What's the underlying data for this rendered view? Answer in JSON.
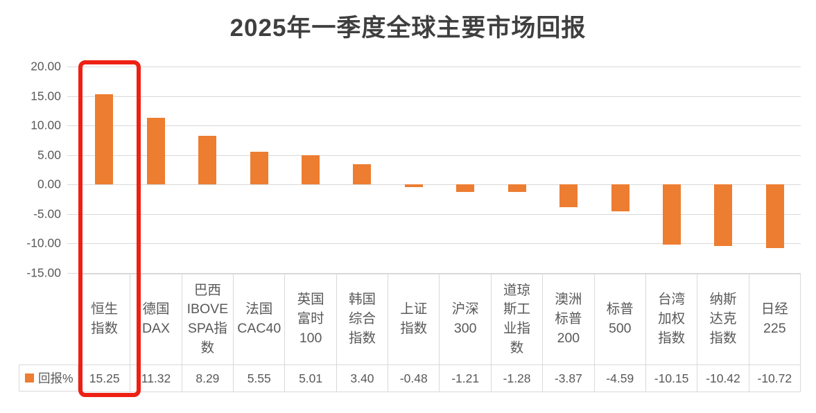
{
  "title": "2025年一季度全球主要市场回报",
  "colors": {
    "bar": "#ED7D31",
    "highlight_box": "#EE2014",
    "title_text": "#3F3F3F",
    "axis_text": "#595959",
    "gridline": "#D9D9D9",
    "table_border": "#D9D9D9",
    "background": "#FFFFFF"
  },
  "y_axis": {
    "ticks": [
      "20.00",
      "15.00",
      "10.00",
      "5.00",
      "0.00",
      "-5.00",
      "-10.00",
      "-15.00"
    ]
  },
  "legend": {
    "series_label": "回报%",
    "swatch_color": "#ED7D31"
  },
  "chart_data": {
    "type": "bar",
    "title": "2025年一季度全球主要市场回报",
    "series_name": "回报%",
    "categories": [
      "恒生指数",
      "德国DAX",
      "巴西IBOVESPA指数",
      "法国CAC40",
      "英国富时100",
      "韩国综合指数",
      "上证指数",
      "沪深300",
      "道琼斯工业指数",
      "澳洲标普200",
      "标普500",
      "台湾加权指数",
      "纳斯达克指数",
      "日经225"
    ],
    "category_display": [
      "恒生\n指数",
      "德国\nDAX",
      "巴西\nIBOVE\nSPA指\n数",
      "法国\nCAC40",
      "英国\n富时\n100",
      "韩国\n综合\n指数",
      "上证\n指数",
      "沪深\n300",
      "道琼\n斯工\n业指\n数",
      "澳洲\n标普\n200",
      "标普\n500",
      "台湾\n加权\n指数",
      "纳斯\n达克\n指数",
      "日经\n225"
    ],
    "values": [
      15.25,
      11.32,
      8.29,
      5.55,
      5.01,
      3.4,
      -0.48,
      -1.21,
      -1.28,
      -3.87,
      -4.59,
      -10.15,
      -10.42,
      -10.72
    ],
    "value_labels": [
      "15.25",
      "11.32",
      "8.29",
      "5.55",
      "5.01",
      "3.40",
      "-0.48",
      "-1.21",
      "-1.28",
      "-3.87",
      "-4.59",
      "-10.15",
      "-10.42",
      "-10.72"
    ],
    "ylim": [
      -15,
      20
    ],
    "grid": true,
    "legend_position": "bottom-left-table"
  },
  "highlight": {
    "category": "恒生指数",
    "value": "15.25",
    "column_index": 0
  }
}
